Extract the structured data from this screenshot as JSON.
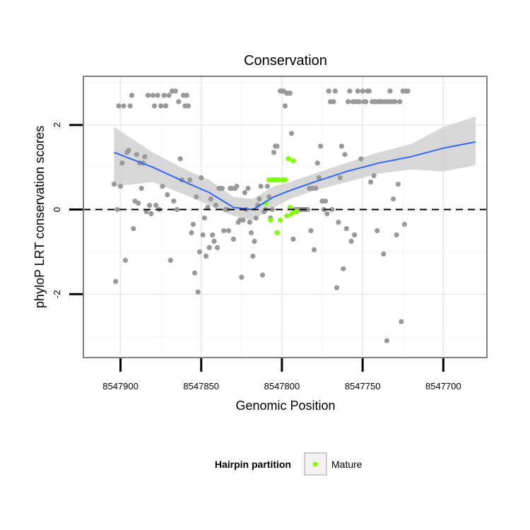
{
  "chart_data": {
    "type": "scatter",
    "title": "Conservation",
    "xlabel": "Genomic Position",
    "ylabel": "phyloP LRT conservation scores",
    "x_reversed": true,
    "xlim": [
      8547923,
      8547673
    ],
    "ylim": [
      -3.5,
      3.15
    ],
    "x_ticks": [
      8547900,
      8547850,
      8547800,
      8547750,
      8547700
    ],
    "x_tick_labels": [
      "8547900",
      "8547850",
      "8547800",
      "8547750",
      "8547700"
    ],
    "y_ticks": [
      -2,
      0,
      2
    ],
    "y_tick_labels": [
      "-2",
      "0",
      "2"
    ],
    "reference_line_y": 0,
    "legend": {
      "title": "Hairpin partition",
      "entries": [
        {
          "label": "Mature",
          "color": "#7fff00"
        }
      ]
    },
    "colors": {
      "other_points": "#999999",
      "mature_points": "#7fff00",
      "smooth_line": "#3366ff",
      "ribbon": "#d0d0d0",
      "panel_border": "#7f7f7f",
      "grid": "#ebebeb"
    },
    "series": [
      {
        "name": "Other",
        "color": "#999999",
        "points": [
          [
            8547904,
            0.6
          ],
          [
            8547903,
            -1.7
          ],
          [
            8547902,
            0.0
          ],
          [
            8547901,
            2.45
          ],
          [
            8547900,
            0.55
          ],
          [
            8547899,
            1.1
          ],
          [
            8547898,
            2.45
          ],
          [
            8547897,
            -1.2
          ],
          [
            8547896,
            1.35
          ],
          [
            8547895,
            1.4
          ],
          [
            8547894,
            2.45
          ],
          [
            8547893,
            2.7
          ],
          [
            8547892,
            -0.45
          ],
          [
            8547891,
            0.2
          ],
          [
            8547890,
            1.3
          ],
          [
            8547889,
            0.15
          ],
          [
            8547888,
            1.1
          ],
          [
            8547887,
            0.5
          ],
          [
            8547886,
            1.1
          ],
          [
            8547885,
            1.25
          ],
          [
            8547884,
            -0.05
          ],
          [
            8547883,
            2.7
          ],
          [
            8547882,
            0.1
          ],
          [
            8547881,
            -0.1
          ],
          [
            8547880,
            2.7
          ],
          [
            8547879,
            2.45
          ],
          [
            8547878,
            0.1
          ],
          [
            8547877,
            2.7
          ],
          [
            8547876,
            0.0
          ],
          [
            8547875,
            2.45
          ],
          [
            8547874,
            0.55
          ],
          [
            8547873,
            2.7
          ],
          [
            8547872,
            2.45
          ],
          [
            8547871,
            0.35
          ],
          [
            8547870,
            2.7
          ],
          [
            8547869,
            -1.2
          ],
          [
            8547868,
            2.8
          ],
          [
            8547867,
            0.2
          ],
          [
            8547866,
            2.8
          ],
          [
            8547865,
            0.0
          ],
          [
            8547864,
            2.55
          ],
          [
            8547863,
            1.2
          ],
          [
            8547862,
            0.7
          ],
          [
            8547861,
            2.7
          ],
          [
            8547860,
            2.45
          ],
          [
            8547859,
            2.7
          ],
          [
            8547858,
            2.45
          ],
          [
            8547857,
            0.7
          ],
          [
            8547856,
            -0.55
          ],
          [
            8547855,
            -0.35
          ],
          [
            8547854,
            -1.5
          ],
          [
            8547853,
            0.3
          ],
          [
            8547852,
            -1.95
          ],
          [
            8547851,
            -1.0
          ],
          [
            8547850,
            0.75
          ],
          [
            8547849,
            -0.6
          ],
          [
            8547848,
            -0.2
          ],
          [
            8547847,
            -1.1
          ],
          [
            8547846,
            0.05
          ],
          [
            8547845,
            -0.9
          ],
          [
            8547844,
            0.25
          ],
          [
            8547843,
            -0.6
          ],
          [
            8547842,
            -0.75
          ],
          [
            8547841,
            0.1
          ],
          [
            8547840,
            -0.9
          ],
          [
            8547839,
            0.5
          ],
          [
            8547838,
            0.5
          ],
          [
            8547837,
            0.5
          ],
          [
            8547836,
            -0.5
          ],
          [
            8547835,
            0.0
          ],
          [
            8547834,
            0.0
          ],
          [
            8547833,
            -0.5
          ],
          [
            8547832,
            0.5
          ],
          [
            8547831,
            0.5
          ],
          [
            8547830,
            -0.7
          ],
          [
            8547829,
            0.5
          ],
          [
            8547828,
            0.55
          ],
          [
            8547827,
            -0.3
          ],
          [
            8547826,
            -0.25
          ],
          [
            8547825,
            -1.6
          ],
          [
            8547824,
            -0.25
          ],
          [
            8547823,
            0.4
          ],
          [
            8547822,
            0.0
          ],
          [
            8547821,
            0.5
          ],
          [
            8547820,
            -0.3
          ],
          [
            8547819,
            -0.55
          ],
          [
            8547818,
            -1.1
          ],
          [
            8547817,
            -0.75
          ],
          [
            8547816,
            -0.2
          ],
          [
            8547815,
            0.1
          ],
          [
            8547814,
            0.25
          ],
          [
            8547813,
            0.55
          ],
          [
            8547812,
            -1.55
          ],
          [
            8547811,
            -0.05
          ],
          [
            8547810,
            0.0
          ],
          [
            8547809,
            0.55
          ],
          [
            8547808,
            0.3
          ],
          [
            8547807,
            -0.2
          ],
          [
            8547806,
            0.0
          ],
          [
            8547805,
            1.35
          ],
          [
            8547804,
            1.5
          ],
          [
            8547803,
            1.5
          ],
          [
            8547802,
            0.7
          ],
          [
            8547801,
            2.8
          ],
          [
            8547800,
            2.8
          ],
          [
            8547799,
            2.8
          ],
          [
            8547798,
            2.45
          ],
          [
            8547797,
            2.75
          ],
          [
            8547796,
            2.75
          ],
          [
            8547795,
            2.75
          ],
          [
            8547794,
            1.8
          ],
          [
            8547793,
            -0.7
          ],
          [
            8547792,
            0.0
          ],
          [
            8547791,
            0.0
          ],
          [
            8547790,
            0.0
          ],
          [
            8547789,
            0.0
          ],
          [
            8547788,
            0.0
          ],
          [
            8547787,
            0.0
          ],
          [
            8547786,
            0.0
          ],
          [
            8547785,
            0.0
          ],
          [
            8547784,
            0.0
          ],
          [
            8547783,
            0.5
          ],
          [
            8547782,
            -0.5
          ],
          [
            8547781,
            0.5
          ],
          [
            8547780,
            -0.95
          ],
          [
            8547779,
            0.5
          ],
          [
            8547778,
            1.1
          ],
          [
            8547777,
            0.75
          ],
          [
            8547776,
            1.5
          ],
          [
            8547775,
            0.2
          ],
          [
            8547774,
            0.0
          ],
          [
            8547773,
            0.2
          ],
          [
            8547772,
            -0.1
          ],
          [
            8547771,
            2.8
          ],
          [
            8547770,
            2.55
          ],
          [
            8547769,
            0.0
          ],
          [
            8547768,
            2.55
          ],
          [
            8547767,
            2.8
          ],
          [
            8547766,
            -1.85
          ],
          [
            8547765,
            -0.3
          ],
          [
            8547764,
            0.75
          ],
          [
            8547763,
            1.5
          ],
          [
            8547762,
            -1.4
          ],
          [
            8547761,
            1.3
          ],
          [
            8547760,
            -0.45
          ],
          [
            8547759,
            2.55
          ],
          [
            8547758,
            2.8
          ],
          [
            8547757,
            -0.75
          ],
          [
            8547756,
            2.55
          ],
          [
            8547755,
            -0.6
          ],
          [
            8547754,
            2.55
          ],
          [
            8547753,
            2.8
          ],
          [
            8547752,
            2.55
          ],
          [
            8547751,
            1.2
          ],
          [
            8547750,
            2.8
          ],
          [
            8547749,
            2.55
          ],
          [
            8547748,
            2.55
          ],
          [
            8547747,
            2.8
          ],
          [
            8547746,
            2.8
          ],
          [
            8547745,
            0.65
          ],
          [
            8547744,
            2.55
          ],
          [
            8547743,
            0.8
          ],
          [
            8547742,
            2.55
          ],
          [
            8547741,
            -0.5
          ],
          [
            8547740,
            2.55
          ],
          [
            8547739,
            2.55
          ],
          [
            8547738,
            2.55
          ],
          [
            8547737,
            -1.05
          ],
          [
            8547736,
            2.55
          ],
          [
            8547735,
            -3.1
          ],
          [
            8547734,
            2.55
          ],
          [
            8547733,
            2.8
          ],
          [
            8547732,
            2.55
          ],
          [
            8547731,
            0.25
          ],
          [
            8547730,
            2.55
          ],
          [
            8547729,
            -0.6
          ],
          [
            8547728,
            0.6
          ],
          [
            8547727,
            2.55
          ],
          [
            8547726,
            -2.65
          ],
          [
            8547725,
            2.8
          ],
          [
            8547724,
            -0.35
          ],
          [
            8547723,
            2.8
          ],
          [
            8547722,
            2.8
          ]
        ]
      },
      {
        "name": "Mature",
        "color": "#7fff00",
        "points": [
          [
            8547810,
            0.15
          ],
          [
            8547808,
            0.7
          ],
          [
            8547807,
            -0.25
          ],
          [
            8547806,
            0.7
          ],
          [
            8547805,
            0.7
          ],
          [
            8547804,
            0.7
          ],
          [
            8547803,
            -0.55
          ],
          [
            8547802,
            0.7
          ],
          [
            8547801,
            -0.25
          ],
          [
            8547800,
            0.7
          ],
          [
            8547799,
            0.7
          ],
          [
            8547798,
            0.7
          ],
          [
            8547797,
            -0.15
          ],
          [
            8547796,
            1.2
          ],
          [
            8547795,
            0.05
          ],
          [
            8547794,
            -0.1
          ],
          [
            8547793,
            1.15
          ],
          [
            8547792,
            -0.05
          ],
          [
            8547791,
            -0.05
          ]
        ]
      }
    ],
    "smooth_fit": {
      "x": [
        8547904,
        8547880,
        8547860,
        8547845,
        8547830,
        8547818,
        8547805,
        8547795,
        8547780,
        8547760,
        8547740,
        8547720,
        8547700,
        8547680
      ],
      "y": [
        1.35,
        1.0,
        0.65,
        0.4,
        0.05,
        0.0,
        0.3,
        0.45,
        0.65,
        0.9,
        1.1,
        1.25,
        1.45,
        1.6
      ],
      "lower": [
        0.55,
        0.65,
        0.35,
        0.1,
        -0.15,
        -0.25,
        0.05,
        0.25,
        0.45,
        0.65,
        0.85,
        0.95,
        0.9,
        1.05
      ],
      "upper": [
        1.95,
        1.35,
        0.95,
        0.7,
        0.3,
        0.25,
        0.55,
        0.65,
        0.85,
        1.1,
        1.35,
        1.55,
        1.95,
        2.2
      ]
    }
  }
}
